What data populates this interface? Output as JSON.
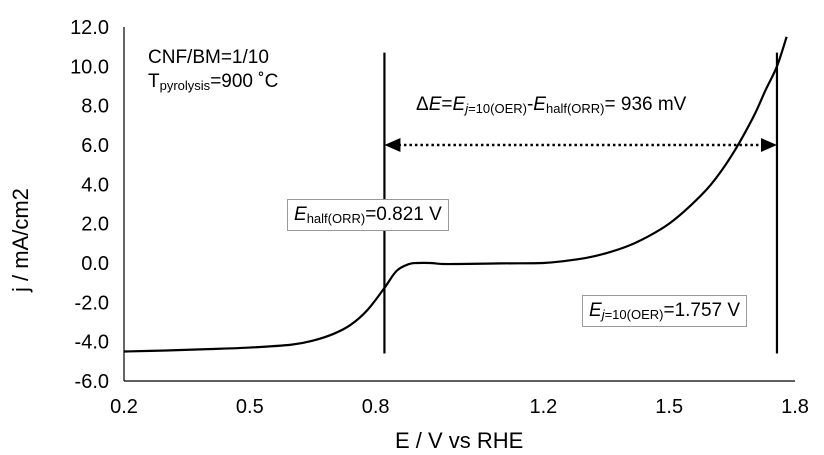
{
  "chart_data": {
    "type": "line",
    "title": "",
    "xlabel": "E / V vs RHE",
    "ylabel": "j / mA/cm2",
    "xlim": [
      0.2,
      1.8
    ],
    "ylim": [
      -6.0,
      12.0
    ],
    "x_ticks": [
      "0.2",
      "0.5",
      "0.8",
      "1.2",
      "1.5",
      "1.8"
    ],
    "y_ticks": [
      "12.0",
      "10.0",
      "8.0",
      "6.0",
      "4.0",
      "2.0",
      "0.0",
      "-2.0",
      "-4.0",
      "-6.0"
    ],
    "grid": false,
    "series": [
      {
        "color": "#000000",
        "x": [
          0.2,
          0.3,
          0.4,
          0.5,
          0.6,
          0.65,
          0.7,
          0.74,
          0.78,
          0.82,
          0.85,
          0.88,
          0.9,
          0.93,
          0.96,
          1.0,
          1.1,
          1.2,
          1.25,
          1.3,
          1.35,
          1.4,
          1.45,
          1.5,
          1.55,
          1.6,
          1.65,
          1.7,
          1.73,
          1.757,
          1.78
        ],
        "y": [
          -4.5,
          -4.45,
          -4.38,
          -4.3,
          -4.15,
          -3.95,
          -3.6,
          -3.15,
          -2.4,
          -1.3,
          -0.4,
          -0.05,
          0.0,
          0.0,
          -0.05,
          -0.05,
          -0.02,
          0.0,
          0.1,
          0.25,
          0.5,
          0.85,
          1.35,
          2.0,
          2.9,
          4.0,
          5.5,
          7.4,
          8.8,
          10.0,
          11.5
        ]
      }
    ],
    "vertical_markers": [
      0.821,
      1.757
    ],
    "arrow": {
      "from": 0.821,
      "to": 1.757,
      "y": 6.0
    }
  },
  "annotations": {
    "sample_line1": "CNF/BM=1/10",
    "sample_T": "T",
    "sample_T_sub": "pyrolysis",
    "sample_T_value": "=900 ˚C",
    "delta_prefix": "Δ",
    "delta_E": "E",
    "delta_eq": "=",
    "delta_E2": "E",
    "delta_sub1_j": "j",
    "delta_sub1_rest": "=10(OER)",
    "delta_dash": "-",
    "delta_E3": "E",
    "delta_sub2": "half(ORR)",
    "delta_value": "= 936 mV",
    "half_E": "E",
    "half_sub": "half(ORR)",
    "half_value": "=0.821 V",
    "oer_E": "E",
    "oer_sub_j": "j",
    "oer_sub_rest": "=10(OER)",
    "oer_value": "=1.757 V"
  }
}
